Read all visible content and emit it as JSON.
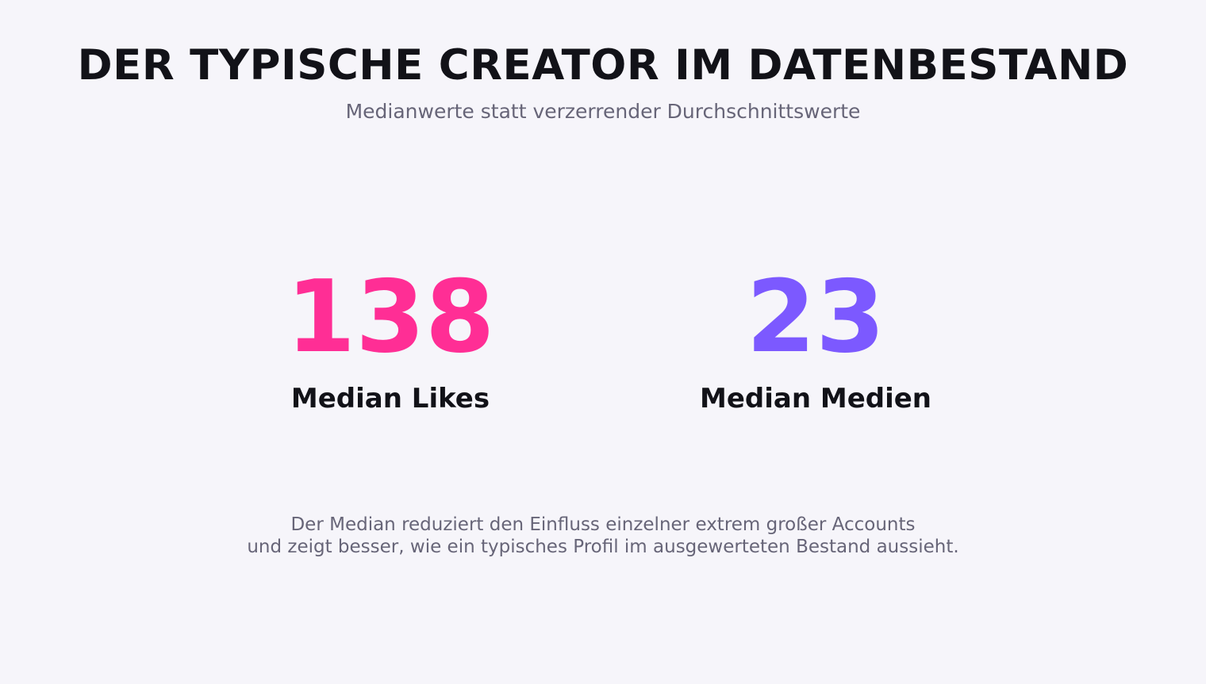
{
  "header": {
    "title": "DER TYPISCHE CREATOR IM DATENBESTAND",
    "subtitle": "Medianwerte statt verzerrender Durchschnittswerte"
  },
  "stats": [
    {
      "value": "138",
      "label": "Median Likes",
      "color": "#ff2e95"
    },
    {
      "value": "23",
      "label": "Median Medien",
      "color": "#7c59ff"
    }
  ],
  "footnote": {
    "line1": "Der Median reduziert den Einfluss einzelner extrem großer Accounts",
    "line2": "und zeigt besser, wie ein typisches Profil im ausgewerteten Bestand aussieht."
  },
  "colors": {
    "background": "#f6f5fa",
    "text": "#121218",
    "muted": "#676578"
  }
}
